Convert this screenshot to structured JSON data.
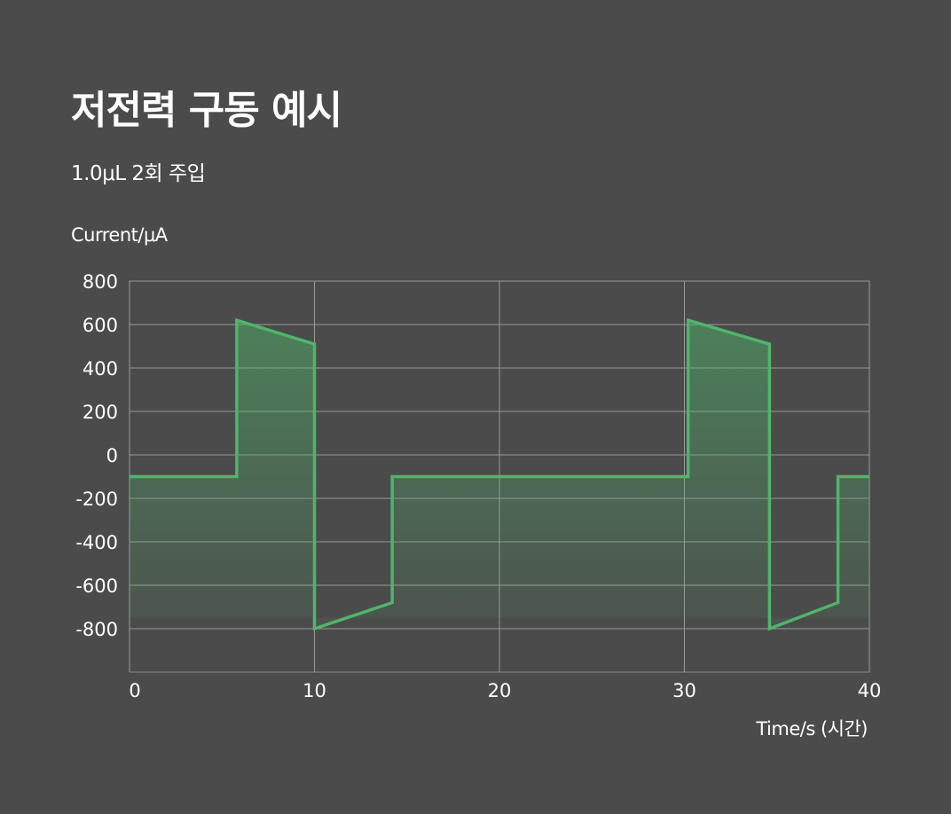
{
  "chart_data": {
    "type": "line",
    "title": "저전력 구동 예시",
    "subtitle": "1.0μL 2회 주입",
    "xlabel": "Time/s (시간)",
    "ylabel": "Current/μA",
    "xlim": [
      0,
      40
    ],
    "ylim": [
      -1000,
      800
    ],
    "x_ticks": [
      0,
      10,
      20,
      30,
      40
    ],
    "y_ticks": [
      800,
      600,
      400,
      200,
      0,
      -200,
      -400,
      -600,
      -800
    ],
    "grid": true,
    "series": [
      {
        "color": "#4fb56a",
        "points": [
          [
            0,
            -100
          ],
          [
            5.8,
            -100
          ],
          [
            5.8,
            620
          ],
          [
            10,
            510
          ],
          [
            10,
            -800
          ],
          [
            14.2,
            -680
          ],
          [
            14.2,
            -100
          ],
          [
            30.2,
            -100
          ],
          [
            30.2,
            620
          ],
          [
            34.6,
            510
          ],
          [
            34.6,
            -800
          ],
          [
            38.3,
            -680
          ],
          [
            38.3,
            -100
          ],
          [
            40,
            -100
          ]
        ]
      }
    ]
  }
}
